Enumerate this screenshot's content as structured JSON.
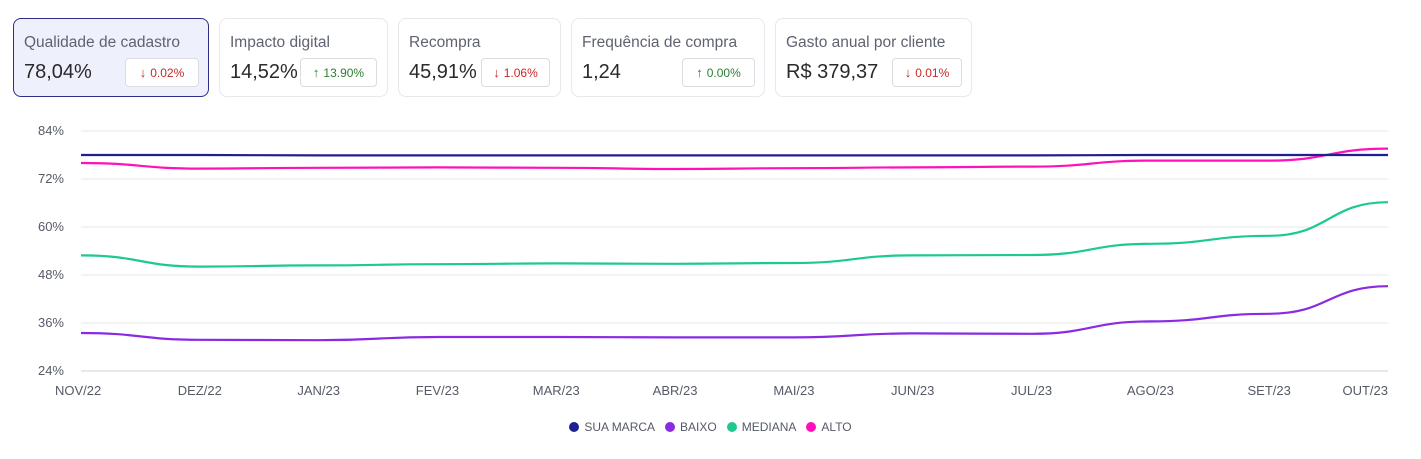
{
  "cards": [
    {
      "title": "Qualidade de cadastro",
      "value": "78,04%",
      "change": "0.02%",
      "direction": "down",
      "active": true
    },
    {
      "title": "Impacto digital",
      "value": "14,52%",
      "change": "13.90%",
      "direction": "up",
      "active": false
    },
    {
      "title": "Recompra",
      "value": "45,91%",
      "change": "1.06%",
      "direction": "down",
      "active": false
    },
    {
      "title": "Frequência de compra",
      "value": "1,24",
      "change": "0.00%",
      "direction": "up",
      "active": false
    },
    {
      "title": "Gasto anual por cliente",
      "value": "R$ 379,37",
      "change": "0.01%",
      "direction": "down",
      "active": false
    }
  ],
  "chart_data": {
    "type": "line",
    "categories": [
      "NOV/22",
      "DEZ/22",
      "JAN/23",
      "FEV/23",
      "MAR/23",
      "ABR/23",
      "MAI/23",
      "JUN/23",
      "JUL/23",
      "AGO/23",
      "SET/23",
      "OUT/23"
    ],
    "y_ticks": [
      "84%",
      "72%",
      "60%",
      "48%",
      "36%",
      "24%"
    ],
    "ylim": [
      24,
      84
    ],
    "grid": true,
    "legend_position": "bottom-center",
    "series": [
      {
        "name": "SUA MARCA",
        "color": "#1f1f8f",
        "values": [
          78.0,
          78.0,
          77.9,
          77.9,
          77.9,
          77.9,
          77.9,
          77.9,
          77.9,
          78.0,
          78.0,
          78.0
        ]
      },
      {
        "name": "BAIXO",
        "color": "#8a2be2",
        "values": [
          33.5,
          31.8,
          31.7,
          32.5,
          32.5,
          32.4,
          32.4,
          33.4,
          33.3,
          36.4,
          38.3,
          45.2
        ]
      },
      {
        "name": "MEDIANA",
        "color": "#1dc990",
        "values": [
          52.9,
          50.1,
          50.4,
          50.7,
          50.9,
          50.8,
          51.0,
          52.9,
          53.0,
          55.8,
          57.8,
          66.2
        ]
      },
      {
        "name": "ALTO",
        "color": "#ff10b8",
        "values": [
          76.0,
          74.6,
          74.8,
          74.9,
          74.8,
          74.5,
          74.7,
          74.9,
          75.1,
          76.6,
          76.6,
          79.6
        ]
      }
    ]
  }
}
